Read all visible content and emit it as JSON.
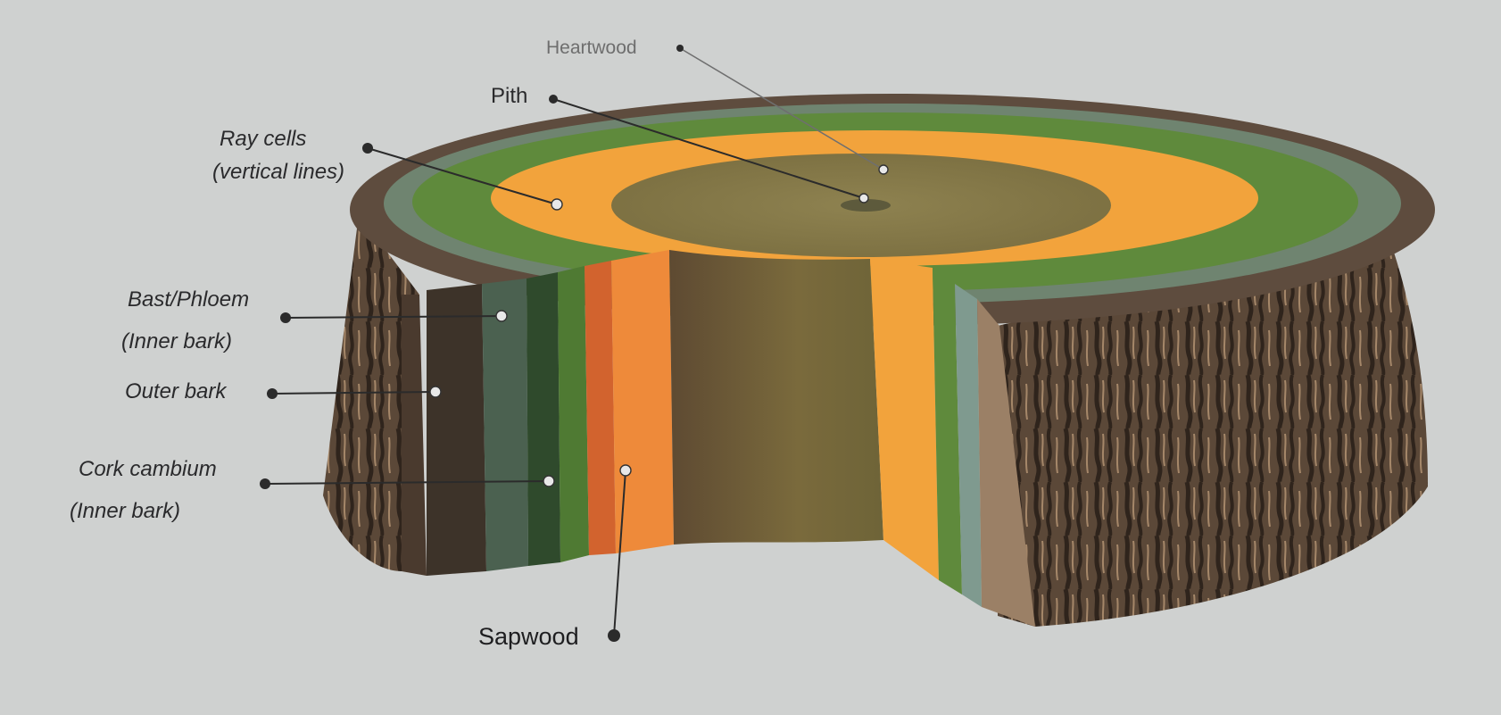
{
  "diagram": {
    "labels": {
      "heartwood": "Heartwood",
      "pith": "Pith",
      "ray_cells_line1": "Ray cells",
      "ray_cells_line2": "(vertical lines)",
      "bast_line1": "Bast/Phloem",
      "bast_line2": "(Inner bark)",
      "outer_bark": "Outer bark",
      "cork_line1": "Cork cambium",
      "cork_line2": "(Inner bark)",
      "sapwood": "Sapwood"
    },
    "colors": {
      "page": "#cfd1d0",
      "outer_bark": "#5b4a3c",
      "bark_texture": "#3a2d24",
      "bark_light": "#8a6f58",
      "cork_cambium": "#6f8470",
      "phloem": "#5f8a3c",
      "sapwood": "#f2a33c",
      "sapwood_dark": "#e07a34",
      "heartwood": "#8a7a45",
      "heartwood_side": "#6b5a36",
      "pith": "#6c6a48"
    }
  }
}
